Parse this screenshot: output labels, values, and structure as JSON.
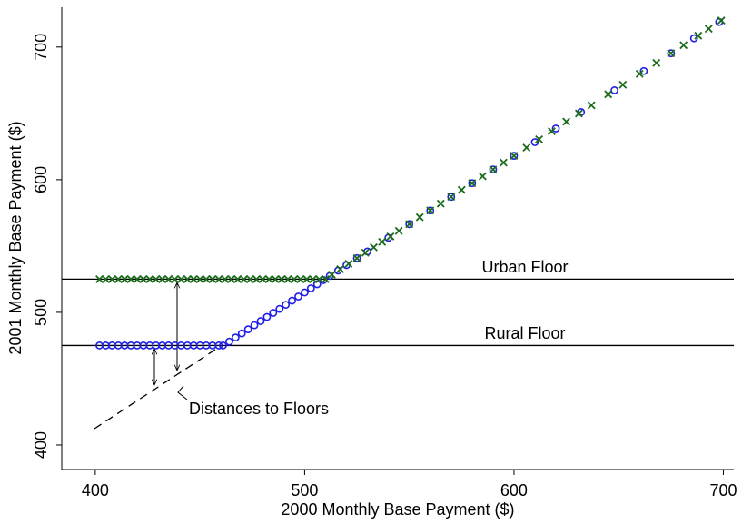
{
  "chart_data": {
    "type": "scatter",
    "xlabel": "2000 Monthly Base Payment ($)",
    "ylabel": "2001 Monthly Base Payment ($)",
    "xlim": [
      384,
      705
    ],
    "ylim": [
      381.5,
      730
    ],
    "xticks": [
      400,
      500,
      600,
      700
    ],
    "yticks": [
      400,
      500,
      600,
      700
    ],
    "series": [
      {
        "color": "#1f1fe6",
        "marker": "circle",
        "x": [
          402,
          405,
          408,
          411,
          414,
          417,
          420,
          423,
          426,
          429,
          432,
          435,
          438,
          441,
          444,
          447,
          450,
          453,
          456,
          459,
          461,
          464,
          467,
          470,
          473,
          476,
          479,
          482,
          485,
          488,
          491,
          494,
          497,
          500,
          503,
          506,
          509,
          512,
          516,
          520,
          525,
          530,
          540,
          550,
          560,
          570,
          580,
          590,
          600,
          610,
          620,
          632,
          648,
          662,
          675,
          686,
          698
        ],
        "values": [
          475,
          475,
          475,
          475,
          475,
          475,
          475,
          475,
          475,
          475,
          475,
          475,
          475,
          475,
          475,
          475,
          475,
          475,
          475,
          475,
          475,
          477.9,
          481.0,
          484.1,
          487.2,
          490.3,
          493.4,
          496.5,
          499.6,
          502.6,
          505.7,
          508.8,
          511.9,
          515,
          518.1,
          521.2,
          524.3,
          527.4,
          531.5,
          535.6,
          540.8,
          545.9,
          556.2,
          566.5,
          576.8,
          587.1,
          597.4,
          607.7,
          618,
          628.3,
          638.6,
          651,
          667.4,
          681.9,
          695.3,
          706.6,
          718.9
        ]
      },
      {
        "color": "#1b6b1b",
        "marker": "x",
        "x": [
          402,
          405,
          408,
          411,
          414,
          417,
          420,
          423,
          426,
          429,
          432,
          435,
          438,
          441,
          444,
          447,
          450,
          453,
          456,
          459,
          462,
          465,
          468,
          471,
          474,
          477,
          480,
          483,
          486,
          489,
          492,
          495,
          498,
          501,
          504,
          507,
          510,
          513,
          517,
          521,
          525,
          529,
          533,
          537,
          541,
          545,
          550,
          555,
          560,
          565,
          570,
          575,
          580,
          585,
          590,
          595,
          600,
          606,
          612,
          618,
          625,
          631,
          637,
          645,
          652,
          660,
          668,
          675,
          681,
          688,
          693,
          699
        ],
        "values": [
          525,
          525,
          525,
          525,
          525,
          525,
          525,
          525,
          525,
          525,
          525,
          525,
          525,
          525,
          525,
          525,
          525,
          525,
          525,
          525,
          525,
          525,
          525,
          525,
          525,
          525,
          525,
          525,
          525,
          525,
          525,
          525,
          525,
          525,
          525,
          525,
          525,
          528.4,
          532.5,
          536.6,
          540.8,
          544.9,
          549,
          553.1,
          557.2,
          561.4,
          566.5,
          571.7,
          576.8,
          582,
          587.1,
          592.3,
          597.4,
          602.6,
          607.7,
          612.9,
          618,
          624.2,
          630.4,
          636.5,
          643.8,
          649.9,
          656.1,
          664.4,
          671.6,
          679.8,
          688,
          695.3,
          701.4,
          708.6,
          713.8,
          720
        ]
      }
    ],
    "hlines": [
      {
        "y": 525,
        "label": "Urban Floor"
      },
      {
        "y": 475,
        "label": "Rural Floor"
      }
    ],
    "annotation": "Distances to Floors"
  }
}
